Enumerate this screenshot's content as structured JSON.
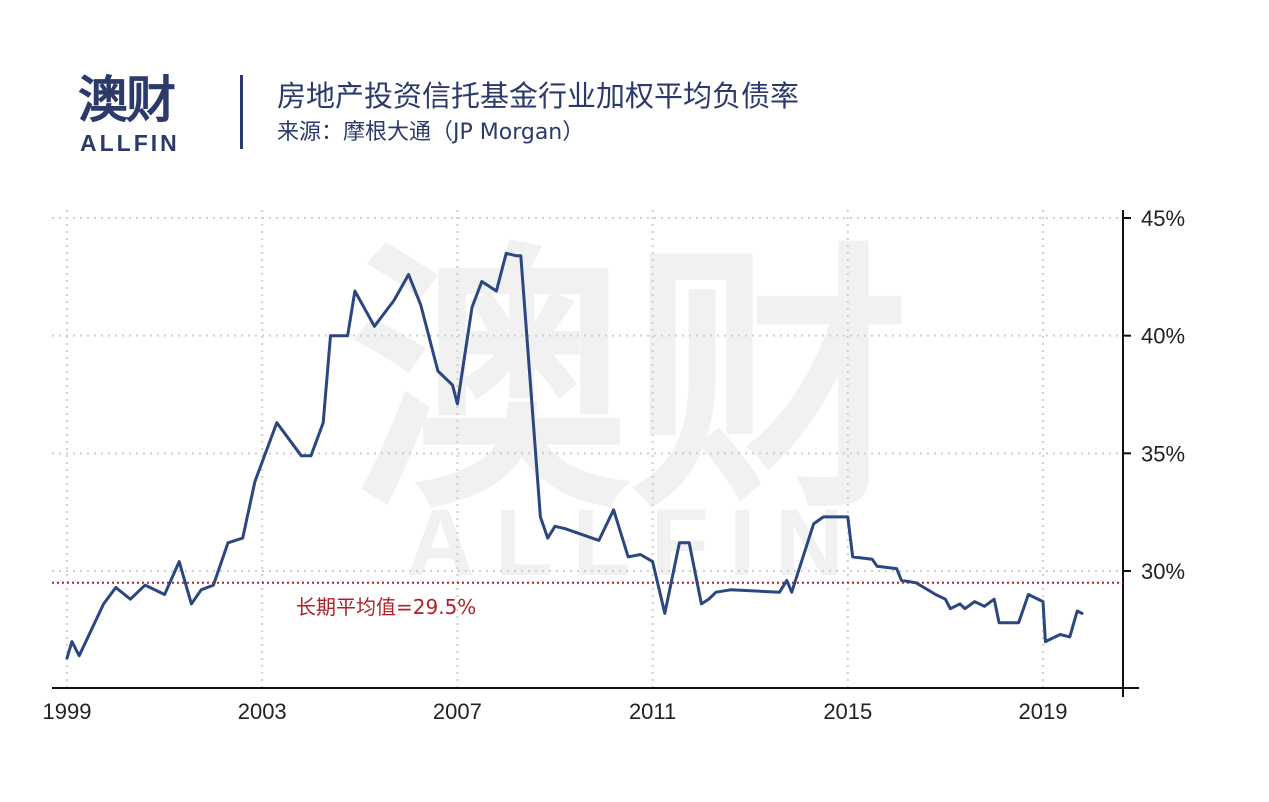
{
  "header": {
    "logo_cn": "澳财",
    "logo_en": "ALLFIN",
    "title": "房地产投资信托基金行业加权平均负债率",
    "subtitle": "来源：摩根大通（JP Morgan）"
  },
  "colors": {
    "brand": "#2b3a6b",
    "line": "#2b4680",
    "average": "#b0212a",
    "grid": "#cfcfcf",
    "watermark": "#f1f1f1"
  },
  "chart_data": {
    "type": "line",
    "title": "房地产投资信托基金行业加权平均负债率",
    "xlabel": "",
    "ylabel": "",
    "xlim": [
      1999,
      2020.6
    ],
    "ylim": [
      25,
      45
    ],
    "grid": true,
    "y_axis_side": "right",
    "x_ticks": [
      "1999",
      "2003",
      "2007",
      "2011",
      "2015",
      "2019"
    ],
    "y_ticks": [
      "30%",
      "35%",
      "40%",
      "45%"
    ],
    "x_tick_values": [
      1999,
      2003,
      2007,
      2011,
      2015,
      2019
    ],
    "y_tick_values": [
      30,
      35,
      40,
      45
    ],
    "reference_line": {
      "value": 29.5,
      "label": "长期平均值=29.5%"
    },
    "series": [
      {
        "x": [
          1999.0,
          1999.1,
          1999.25,
          1999.75,
          2000.0,
          2000.3,
          2000.6,
          2001.0,
          2001.3,
          2001.55,
          2001.75,
          2002.0,
          2002.3,
          2002.6,
          2002.85,
          2003.3,
          2003.8,
          2004.0,
          2004.25,
          2004.4,
          2004.75,
          2004.9,
          2005.3,
          2005.7,
          2006.0,
          2006.25,
          2006.6,
          2006.9,
          2007.0,
          2007.3,
          2007.5,
          2007.8,
          2008.0,
          2008.2,
          2008.3,
          2008.7,
          2008.85,
          2009.0,
          2009.2,
          2009.9,
          2010.2,
          2010.5,
          2010.75,
          2011.0,
          2011.25,
          2011.55,
          2011.75,
          2012.0,
          2012.15,
          2012.3,
          2012.6,
          2013.6,
          2013.75,
          2013.85,
          2014.3,
          2014.5,
          2015.0,
          2015.1,
          2015.5,
          2015.6,
          2016.0,
          2016.1,
          2016.4,
          2016.8,
          2017.0,
          2017.1,
          2017.3,
          2017.4,
          2017.6,
          2017.8,
          2018.0,
          2018.1,
          2018.5,
          2018.7,
          2019.0,
          2019.05,
          2019.35,
          2019.55,
          2019.7,
          2019.8
        ],
        "y": [
          26.3,
          27.0,
          26.4,
          28.6,
          29.3,
          28.8,
          29.4,
          29.0,
          30.4,
          28.6,
          29.2,
          29.4,
          31.2,
          31.4,
          33.8,
          36.3,
          34.9,
          34.9,
          36.3,
          40.0,
          40.0,
          41.9,
          40.4,
          41.5,
          42.6,
          41.3,
          38.5,
          37.9,
          37.1,
          41.2,
          42.3,
          41.9,
          43.5,
          43.4,
          43.4,
          32.3,
          31.4,
          31.9,
          31.8,
          31.3,
          32.6,
          30.6,
          30.7,
          30.4,
          28.2,
          31.2,
          31.2,
          28.6,
          28.8,
          29.1,
          29.2,
          29.1,
          29.6,
          29.1,
          32.0,
          32.3,
          32.3,
          30.6,
          30.5,
          30.2,
          30.1,
          29.6,
          29.5,
          29.0,
          28.8,
          28.4,
          28.6,
          28.4,
          28.7,
          28.5,
          28.8,
          27.8,
          27.8,
          29.0,
          28.7,
          27.0,
          27.3,
          27.2,
          28.3,
          28.2
        ]
      }
    ]
  }
}
